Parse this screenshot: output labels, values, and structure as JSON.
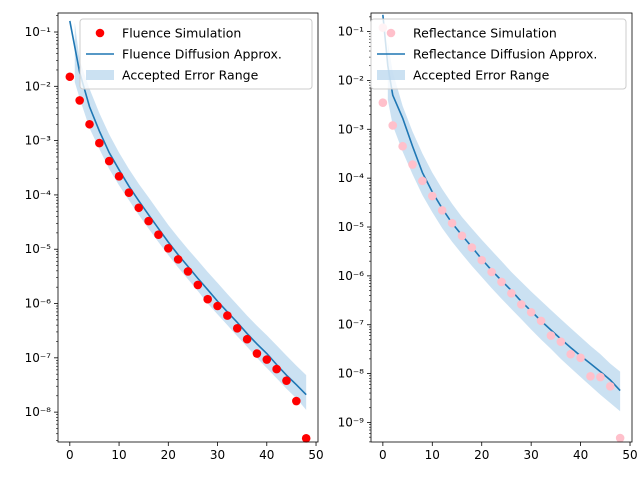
{
  "chart_data": [
    {
      "type": "scatter",
      "log_y": true,
      "xlim": [
        -2.4,
        50.4
      ],
      "ylim_exponent": [
        -8.55,
        -0.65
      ],
      "x_ticks": [
        0,
        10,
        20,
        30,
        40,
        50
      ],
      "y_tick_exponents": [
        -8,
        -7,
        -6,
        -5,
        -4,
        -3,
        -2,
        -1
      ],
      "legend_position": "upper right",
      "series": [
        {
          "name": "Fluence Simulation",
          "kind": "scatter",
          "color": "#ff0000",
          "x": [
            0,
            2,
            4,
            6,
            8,
            10,
            12,
            14,
            16,
            18,
            20,
            22,
            24,
            26,
            28,
            30,
            32,
            34,
            36,
            38,
            40,
            42,
            44,
            46,
            48
          ],
          "y": [
            0.015,
            0.0055,
            0.002,
            0.0009,
            0.00042,
            0.00022,
            0.00011,
            5.8e-05,
            3.3e-05,
            1.85e-05,
            1.04e-05,
            6.5e-06,
            3.9e-06,
            2.2e-06,
            1.2e-06,
            9e-07,
            6e-07,
            3.5e-07,
            2.2e-07,
            1.2e-07,
            9.3e-08,
            6.2e-08,
            3.8e-08,
            1.6e-08,
            3.3e-09
          ]
        },
        {
          "name": "Fluence Diffusion Approx.",
          "kind": "line",
          "color": "#1f77b4",
          "x": [
            0,
            2,
            4,
            6,
            8,
            10,
            12,
            14,
            16,
            18,
            20,
            22,
            24,
            26,
            28,
            30,
            32,
            34,
            36,
            38,
            40,
            42,
            44,
            46,
            48
          ],
          "y": [
            0.16,
            0.018,
            0.0042,
            0.0015,
            0.0006,
            0.00029,
            0.000145,
            7.8e-05,
            4.3e-05,
            2.4e-05,
            1.35e-05,
            7.9e-06,
            4.8e-06,
            2.9e-06,
            1.8e-06,
            1.1e-06,
            7e-07,
            4.5e-07,
            2.8e-07,
            1.8e-07,
            1.2e-07,
            7.5e-08,
            4.8e-08,
            3.2e-08,
            2.1e-08
          ]
        },
        {
          "name": "Accepted Error Range",
          "kind": "band",
          "color": "#b5d4ec",
          "x": [
            1,
            2,
            4,
            6,
            8,
            10,
            12,
            14,
            16,
            18,
            20,
            22,
            24,
            26,
            28,
            30,
            32,
            34,
            36,
            38,
            40,
            42,
            44,
            46,
            48
          ],
          "y_low": [
            0.012,
            0.006,
            0.0017,
            0.0007,
            0.0003,
            0.00015,
            8e-05,
            4.3e-05,
            2.4e-05,
            1.35e-05,
            7.8e-06,
            4.6e-06,
            2.8e-06,
            1.7e-06,
            1e-06,
            6.3e-07,
            4e-07,
            2.5e-07,
            1.6e-07,
            1e-07,
            6.5e-08,
            4.2e-08,
            2.7e-08,
            1.8e-08,
            1.1e-08
          ],
          "y_high": [
            0.15,
            0.03,
            0.009,
            0.0032,
            0.0013,
            0.0006,
            0.0003,
            0.00016,
            9e-05,
            5e-05,
            2.8e-05,
            1.65e-05,
            1e-05,
            6.2e-06,
            3.8e-06,
            2.4e-06,
            1.5e-06,
            9.5e-07,
            6e-07,
            3.9e-07,
            2.6e-07,
            1.7e-07,
            1.1e-07,
            7.2e-08,
            4.8e-08
          ]
        }
      ]
    },
    {
      "type": "scatter",
      "log_y": true,
      "xlim": [
        -2.4,
        50.4
      ],
      "ylim_exponent": [
        -9.4,
        -0.62
      ],
      "x_ticks": [
        0,
        10,
        20,
        30,
        40,
        50
      ],
      "y_tick_exponents": [
        -9,
        -8,
        -7,
        -6,
        -5,
        -4,
        -3,
        -2,
        -1
      ],
      "legend_position": "upper right",
      "series": [
        {
          "name": "Reflectance Simulation",
          "kind": "scatter",
          "color": "#ffc0cb",
          "x": [
            0,
            0,
            2,
            4,
            6,
            8,
            10,
            12,
            14,
            16,
            18,
            20,
            22,
            24,
            26,
            28,
            30,
            32,
            34,
            36,
            38,
            40,
            42,
            44,
            46,
            48
          ],
          "y": [
            0.12,
            0.0035,
            0.0012,
            0.00045,
            0.00019,
            8.8e-05,
            4.3e-05,
            2.2e-05,
            1.2e-05,
            6.6e-06,
            3.8e-06,
            2.1e-06,
            1.2e-06,
            7.5e-07,
            4.4e-07,
            2.6e-07,
            1.8e-07,
            1.2e-07,
            6e-08,
            4.5e-08,
            2.5e-08,
            2.1e-08,
            8.8e-09,
            8.5e-09,
            5.5e-09,
            4.8e-10
          ]
        },
        {
          "name": "Reflectance Diffusion Approx.",
          "kind": "line",
          "color": "#1f77b4",
          "x": [
            0,
            1,
            2,
            4,
            6,
            8,
            10,
            12,
            14,
            16,
            18,
            20,
            22,
            24,
            26,
            28,
            30,
            32,
            34,
            36,
            38,
            40,
            42,
            44,
            46,
            48
          ],
          "y": [
            0.22,
            0.02,
            0.005,
            0.0017,
            0.00045,
            0.00013,
            5.2e-05,
            2.4e-05,
            1.2e-05,
            6.8e-06,
            3.9e-06,
            2.2e-06,
            1.3e-06,
            8e-07,
            5e-07,
            3e-07,
            1.9e-07,
            1.2e-07,
            7.8e-08,
            5.1e-08,
            3.4e-08,
            2.3e-08,
            1.6e-08,
            1.1e-08,
            7.4e-09,
            4.5e-09
          ]
        },
        {
          "name": "Accepted Error Range",
          "kind": "band",
          "color": "#b5d4ec",
          "x": [
            1,
            2,
            4,
            6,
            8,
            10,
            12,
            14,
            16,
            18,
            20,
            22,
            24,
            26,
            28,
            30,
            32,
            34,
            36,
            38,
            40,
            42,
            44,
            46,
            48
          ],
          "y_low": [
            0.004,
            0.0012,
            0.00035,
            0.00012,
            4.5e-05,
            2e-05,
            9.5e-06,
            5e-06,
            2.8e-06,
            1.6e-06,
            9.5e-07,
            5.6e-07,
            3.4e-07,
            2.1e-07,
            1.3e-07,
            8e-08,
            5e-08,
            3.2e-08,
            2e-08,
            1.3e-08,
            8.5e-09,
            5.6e-09,
            3.7e-09,
            2.5e-09,
            1.7e-09
          ],
          "y_high": [
            0.06,
            0.015,
            0.003,
            0.0009,
            0.00032,
            0.00013,
            6e-05,
            3e-05,
            1.6e-05,
            9.3e-06,
            5.5e-06,
            3.3e-06,
            2e-06,
            1.2e-06,
            7.6e-07,
            4.8e-07,
            3.1e-07,
            2e-07,
            1.3e-07,
            8.5e-08,
            5.6e-08,
            3.7e-08,
            2.5e-08,
            1.6e-08,
            1.1e-08
          ]
        }
      ]
    }
  ]
}
